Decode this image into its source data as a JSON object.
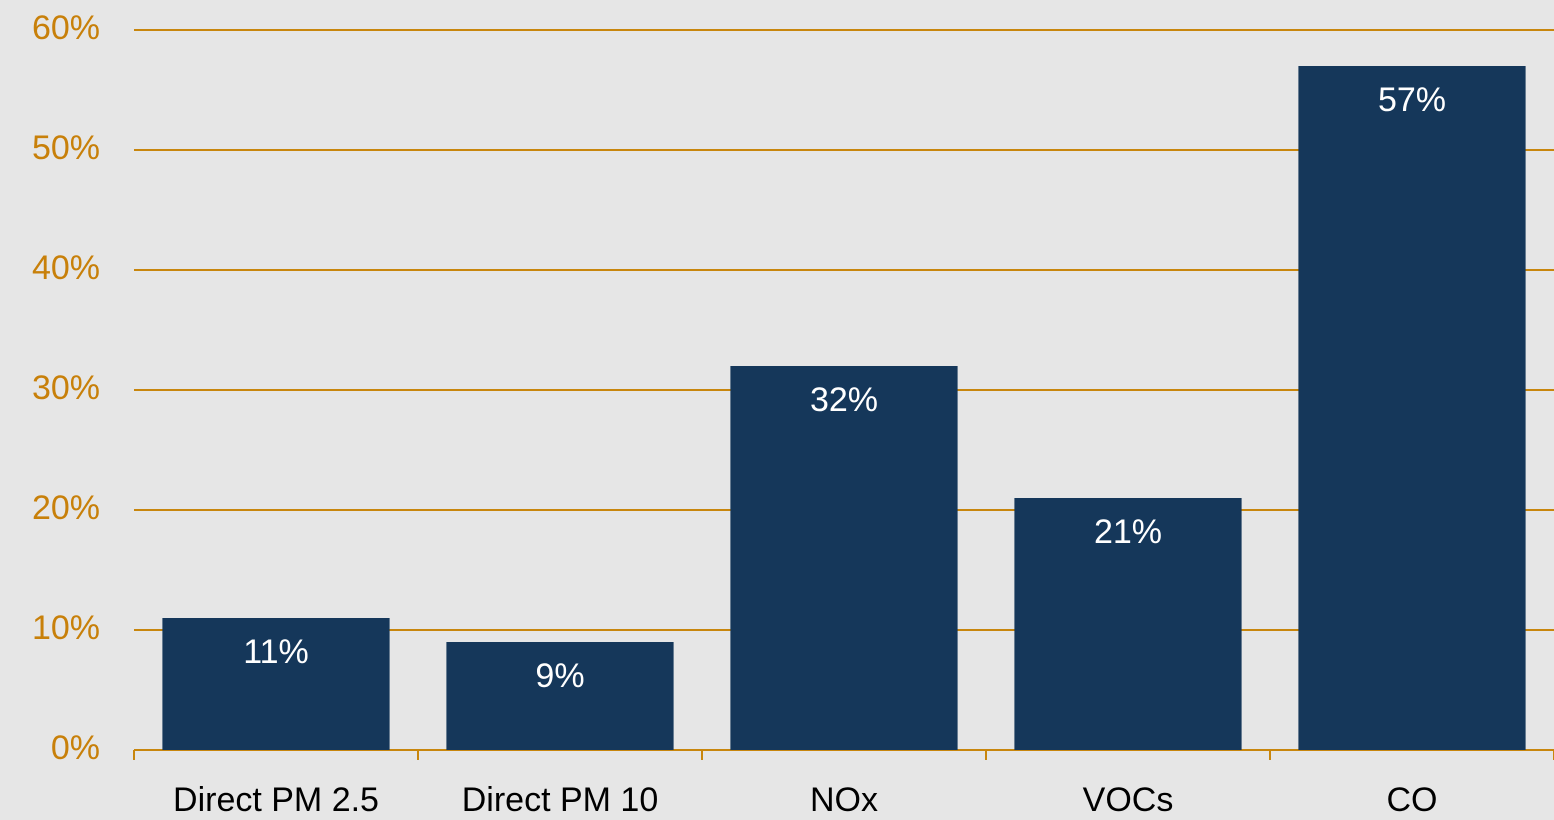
{
  "chart_data": {
    "type": "bar",
    "categories": [
      "Direct PM 2.5",
      "Direct PM 10",
      "NOx",
      "VOCs",
      "CO"
    ],
    "values": [
      11,
      9,
      32,
      21,
      57
    ],
    "value_labels": [
      "11%",
      "9%",
      "32%",
      "21%",
      "57%"
    ],
    "color": "#15375a",
    "ylim": [
      0,
      60
    ],
    "yticks": [
      {
        "value": 0,
        "label": "0%"
      },
      {
        "value": 10,
        "label": "10%"
      },
      {
        "value": 20,
        "label": "20%"
      },
      {
        "value": 30,
        "label": "30%"
      },
      {
        "value": 40,
        "label": "40%"
      },
      {
        "value": 50,
        "label": "50%"
      },
      {
        "value": 60,
        "label": "60%"
      }
    ],
    "grid": true
  }
}
